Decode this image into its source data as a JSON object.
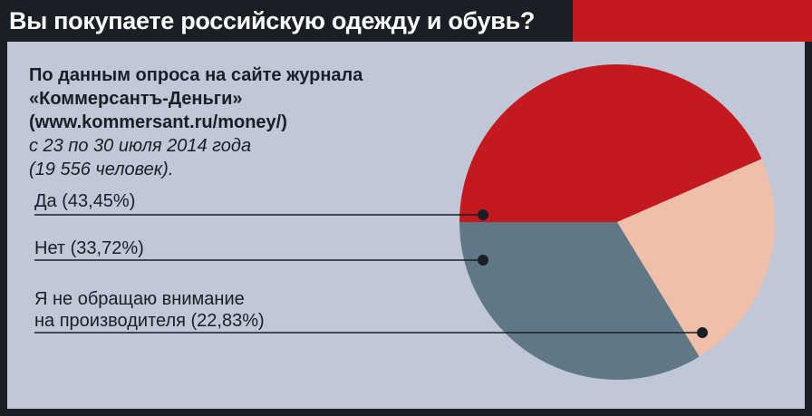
{
  "title": "Вы покупаете российскую одежду и обувь?",
  "source": {
    "line1": "По данным опроса на сайте журнала",
    "line2": "«Коммерсантъ-Деньги»",
    "line3": "(www.kommersant.ru/money/)",
    "line4": "с 23  по 30 июля 2014 года",
    "line5": "(19 556 человек)."
  },
  "chart_data": {
    "type": "pie",
    "slices": [
      {
        "label": "Да (43,45%)",
        "label2": "",
        "value": 43.45,
        "color": "#c41a1f"
      },
      {
        "label": "Нет (33,72%)",
        "label2": "",
        "value": 33.72,
        "color": "#607885"
      },
      {
        "label": "Я не обращаю внимание",
        "label2": "на производителя (22,83%)",
        "value": 22.83,
        "color": "#f0bfaa"
      }
    ]
  }
}
